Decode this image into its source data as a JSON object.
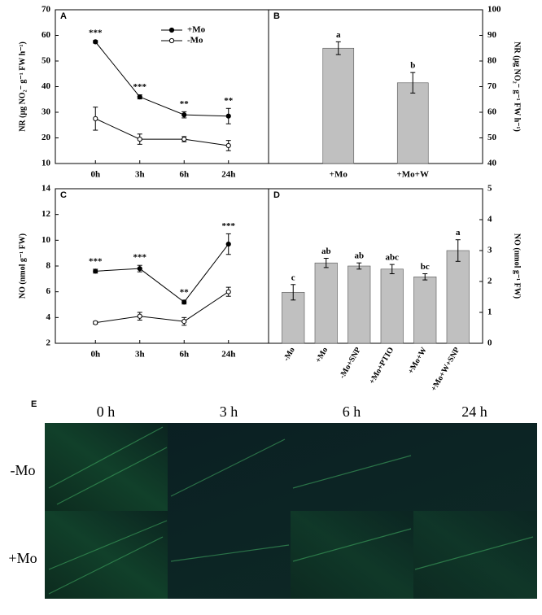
{
  "chart_data": [
    {
      "type": "line",
      "panel": "A",
      "ylabel": "NR (μg NO₂⁻ g⁻¹ FW h⁻¹)",
      "yaxis": "left",
      "categories": [
        "0h",
        "3h",
        "6h",
        "24h"
      ],
      "ylim": [
        10,
        70
      ],
      "yticks": [
        10,
        20,
        30,
        40,
        50,
        60,
        70
      ],
      "legend": true,
      "annotations": [
        "***",
        "***",
        "**",
        "**"
      ],
      "series": [
        {
          "name": "+Mo",
          "color": "#000000",
          "marker": "filled",
          "values": [
            57.5,
            36,
            29,
            28.5
          ],
          "errors": [
            0.5,
            0.8,
            1.2,
            3
          ]
        },
        {
          "name": "-Mo",
          "color": "#000000",
          "marker": "open",
          "values": [
            27.5,
            19.5,
            19.5,
            17
          ],
          "errors": [
            4.5,
            2,
            1,
            2
          ]
        }
      ]
    },
    {
      "type": "bar",
      "panel": "B",
      "ylabel": "NR (μg NO₂⁻ g⁻¹ FW h⁻¹)",
      "yaxis": "right",
      "categories": [
        "+Mo",
        "+Mo+W"
      ],
      "ylim": [
        40,
        100
      ],
      "yticks": [
        40,
        50,
        60,
        70,
        80,
        90,
        100
      ],
      "values": [
        85,
        71.5
      ],
      "errors": [
        2.5,
        4
      ],
      "letters": [
        "a",
        "b"
      ],
      "color": "#c0c0c0"
    },
    {
      "type": "line",
      "panel": "C",
      "ylabel": "NO (nmol g⁻¹ FW)",
      "yaxis": "left",
      "categories": [
        "0h",
        "3h",
        "6h",
        "24h"
      ],
      "ylim": [
        2,
        14
      ],
      "yticks": [
        2,
        4,
        6,
        8,
        10,
        12,
        14
      ],
      "legend": false,
      "annotations": [
        "***",
        "***",
        "**",
        "***"
      ],
      "series": [
        {
          "color": "#000000",
          "marker": "filled",
          "values": [
            7.6,
            7.8,
            5.2,
            9.7
          ],
          "errors": [
            0.15,
            0.25,
            0.15,
            0.8
          ]
        },
        {
          "color": "#000000",
          "marker": "open",
          "values": [
            3.6,
            4.1,
            3.7,
            6.0
          ],
          "errors": [
            0.1,
            0.3,
            0.3,
            0.35
          ]
        }
      ]
    },
    {
      "type": "bar",
      "panel": "D",
      "ylabel": "NO (nmol g⁻¹ FW)",
      "yaxis": "right",
      "rotate_labels": true,
      "categories": [
        "-Mo",
        "+Mo",
        "-Mo+SNP",
        "+Mo+PTIO",
        "+Mo+W",
        "+Mo+W+SNP"
      ],
      "ylim": [
        0,
        5
      ],
      "yticks": [
        0,
        1,
        2,
        3,
        4,
        5
      ],
      "values": [
        1.65,
        2.6,
        2.5,
        2.4,
        2.15,
        3.0
      ],
      "errors": [
        0.25,
        0.15,
        0.1,
        0.15,
        0.1,
        0.35
      ],
      "letters": [
        "c",
        "ab",
        "ab",
        "abc",
        "bc",
        "a"
      ],
      "color": "#c0c0c0"
    }
  ],
  "panel_e": {
    "label": "E",
    "columns": [
      "0 h",
      "3 h",
      "6 h",
      "24 h"
    ],
    "rows": [
      "-Mo",
      "+Mo"
    ]
  }
}
